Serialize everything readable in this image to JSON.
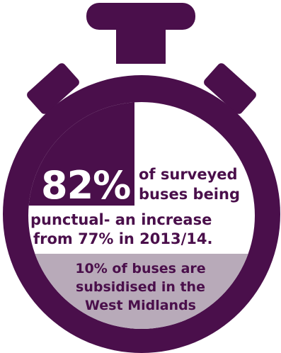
{
  "colors": {
    "purple": "#4a0f4b",
    "light_purple": "#b8aab9",
    "white": "#ffffff"
  },
  "icons": {
    "graphic": "stopwatch-icon",
    "indicator": "pie-quarter-icon"
  },
  "stat": {
    "value": "82%",
    "line1": "of surveyed",
    "line2": "buses being",
    "line3": "punctual- an increase",
    "line4": "from 77% in 2013/14."
  },
  "note": {
    "line1": "10% of buses are",
    "line2": "subsidised in the",
    "line3": "West Midlands"
  }
}
